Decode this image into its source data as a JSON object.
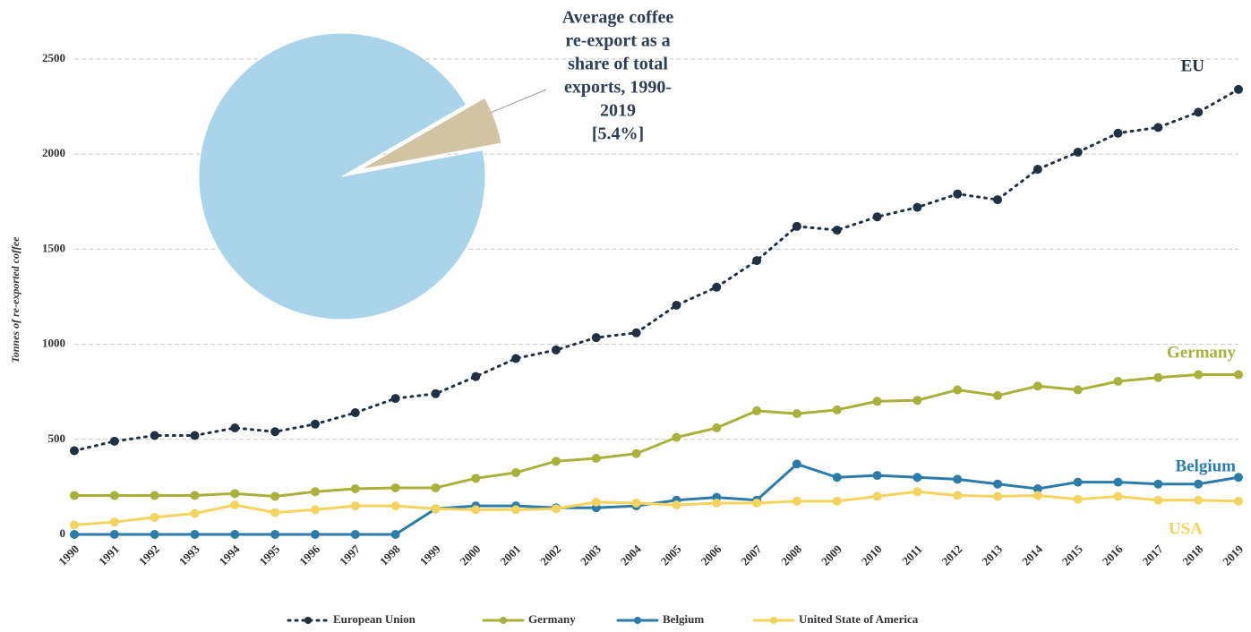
{
  "chart_data": [
    {
      "type": "line",
      "y_label": "Tonnes of re-exported coffee",
      "categories": [
        "1990",
        "1991",
        "1992",
        "1993",
        "1994",
        "1995",
        "1996",
        "1997",
        "1998",
        "1999",
        "2000",
        "2001",
        "2002",
        "2003",
        "2004",
        "2005",
        "2006",
        "2007",
        "2008",
        "2009",
        "2010",
        "2011",
        "2012",
        "2013",
        "2014",
        "2015",
        "2016",
        "2017",
        "2018",
        "2019"
      ],
      "ylim": [
        0,
        2650
      ],
      "yticks": [
        0,
        500,
        1000,
        1500,
        2000,
        2500
      ],
      "grid": true,
      "legend": "bottom",
      "series": [
        {
          "name": "European Union",
          "end_label": "EU",
          "color": "#1f3142",
          "dash": "dotted",
          "values": [
            440,
            490,
            520,
            520,
            560,
            540,
            580,
            640,
            715,
            740,
            830,
            925,
            970,
            1035,
            1060,
            1205,
            1300,
            1440,
            1620,
            1600,
            1670,
            1720,
            1790,
            1760,
            1920,
            2010,
            2110,
            2140,
            2220,
            2340
          ]
        },
        {
          "name": "Germany",
          "end_label": "Germany",
          "color": "#a8b23a",
          "dash": "solid",
          "values": [
            205,
            205,
            205,
            205,
            215,
            200,
            225,
            240,
            245,
            245,
            295,
            325,
            385,
            400,
            425,
            510,
            560,
            650,
            635,
            655,
            700,
            705,
            760,
            730,
            780,
            760,
            805,
            825,
            840,
            840
          ]
        },
        {
          "name": "Belgium",
          "end_label": "Belgium",
          "color": "#2b7ca8",
          "dash": "solid",
          "values": [
            0,
            0,
            0,
            0,
            0,
            0,
            0,
            0,
            0,
            135,
            150,
            150,
            140,
            140,
            150,
            180,
            195,
            180,
            370,
            300,
            310,
            300,
            290,
            265,
            240,
            275,
            275,
            265,
            265,
            300
          ]
        },
        {
          "name": "United State of America",
          "end_label": "USA",
          "color": "#f5d45e",
          "dash": "solid",
          "values": [
            50,
            65,
            90,
            110,
            155,
            115,
            130,
            150,
            150,
            135,
            130,
            130,
            135,
            170,
            165,
            155,
            165,
            165,
            175,
            175,
            200,
            225,
            205,
            200,
            205,
            185,
            200,
            180,
            180,
            175
          ]
        }
      ]
    },
    {
      "type": "pie",
      "title": [
        "Average coffee",
        "re-export as a",
        "share of total",
        "exports, 1990-",
        "2019"
      ],
      "values": [
        94.6,
        5.4
      ],
      "value_labels": [
        null,
        "[5.4%]"
      ],
      "colors": [
        "#a9d4ea",
        "#d2c3a3"
      ]
    }
  ]
}
